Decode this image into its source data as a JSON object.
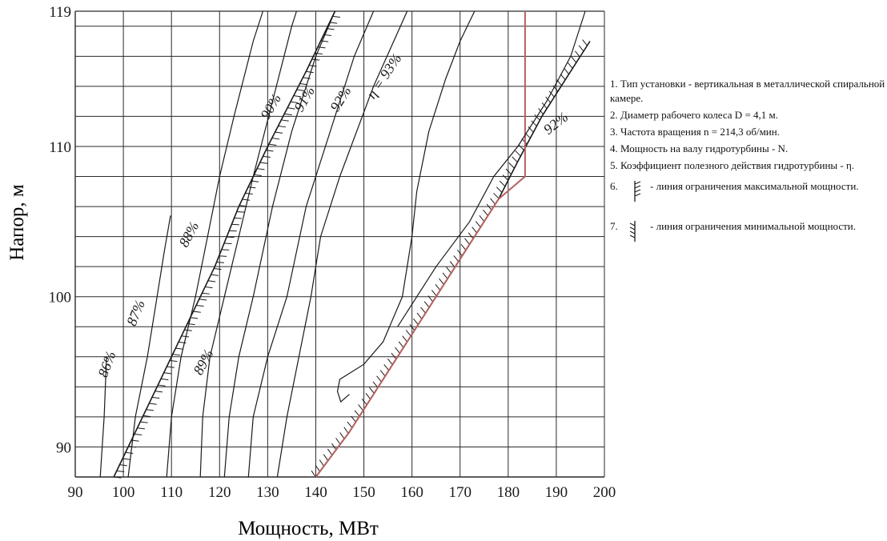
{
  "chart_data": {
    "type": "line",
    "title": "",
    "xlabel": "Мощность, МВт",
    "ylabel": "Напор, м",
    "xlim": [
      90,
      200
    ],
    "ylim": [
      88,
      119
    ],
    "x_ticks": [
      "90",
      "100",
      "110",
      "120",
      "130",
      "140",
      "150",
      "160",
      "170",
      "180",
      "190",
      "200"
    ],
    "y_ticks": [
      "90",
      "100",
      "110",
      "119"
    ],
    "grid": true,
    "efficiency_contours": [
      {
        "label": "86%",
        "points": [
          [
            95.2,
            88
          ],
          [
            96.0,
            92
          ],
          [
            96.5,
            96
          ]
        ]
      },
      {
        "label": "87%",
        "points": [
          [
            101,
            88
          ],
          [
            102.5,
            92
          ],
          [
            105,
            96
          ],
          [
            107,
            100
          ],
          [
            108.5,
            103
          ],
          [
            109.8,
            105.4
          ]
        ]
      },
      {
        "label": "88%",
        "points": [
          [
            109,
            88
          ],
          [
            110,
            92
          ],
          [
            112,
            96
          ],
          [
            115,
            100
          ],
          [
            117.5,
            104
          ],
          [
            120,
            108
          ],
          [
            123,
            112
          ],
          [
            127,
            117
          ],
          [
            129,
            119
          ]
        ]
      },
      {
        "label": "89%",
        "points": [
          [
            116,
            88
          ],
          [
            116.5,
            92
          ],
          [
            118,
            96
          ],
          [
            121,
            100
          ],
          [
            124,
            104
          ],
          [
            127,
            108
          ],
          [
            131,
            113
          ],
          [
            135,
            118
          ],
          [
            136,
            119
          ]
        ]
      },
      {
        "label": "90%",
        "points": [
          [
            121,
            88
          ],
          [
            122,
            92
          ],
          [
            124,
            96
          ],
          [
            127,
            100
          ],
          [
            131,
            106
          ],
          [
            135,
            111
          ],
          [
            140,
            116
          ],
          [
            144,
            119
          ]
        ]
      },
      {
        "label": "91%",
        "points": [
          [
            126,
            88
          ],
          [
            127,
            92
          ],
          [
            130,
            96
          ],
          [
            134,
            100
          ],
          [
            138,
            106
          ],
          [
            143,
            111
          ],
          [
            148,
            116
          ],
          [
            152,
            119
          ]
        ]
      },
      {
        "label": "92%",
        "points": [
          [
            132,
            88
          ],
          [
            134,
            92
          ],
          [
            136.5,
            96
          ],
          [
            139,
            100
          ],
          [
            141,
            104
          ],
          [
            145,
            108
          ],
          [
            152,
            114
          ],
          [
            159,
            119
          ]
        ]
      },
      {
        "label": "η = 93%",
        "points": [
          [
            147,
            93.5
          ],
          [
            145.2,
            93
          ],
          [
            144.5,
            93.7
          ],
          [
            145,
            94.5
          ],
          [
            150,
            95.5
          ],
          [
            154,
            97
          ],
          [
            158,
            100
          ],
          [
            160,
            104
          ],
          [
            161,
            107
          ],
          [
            163.5,
            111
          ],
          [
            167,
            114.5
          ],
          [
            170,
            117
          ],
          [
            173,
            119
          ]
        ]
      },
      {
        "label": "92%",
        "points": [
          [
            157,
            98
          ],
          [
            165,
            102
          ],
          [
            172,
            105
          ],
          [
            177,
            108
          ],
          [
            182,
            110
          ],
          [
            188,
            113
          ],
          [
            193,
            116
          ],
          [
            196,
            119
          ]
        ]
      }
    ],
    "max_power_limit": {
      "points": [
        [
          98,
          88
        ],
        [
          101,
          90
        ],
        [
          107,
          94
        ],
        [
          113,
          98
        ],
        [
          119,
          102
        ],
        [
          124,
          106
        ],
        [
          130,
          110
        ],
        [
          138,
          115
        ],
        [
          144,
          119
        ]
      ]
    },
    "min_power_limit": {
      "points": [
        [
          140,
          88
        ],
        [
          147,
          91
        ],
        [
          155,
          95
        ],
        [
          163,
          99
        ],
        [
          171,
          103
        ],
        [
          178,
          106.5
        ],
        [
          182,
          109
        ],
        [
          187,
          112
        ],
        [
          193,
          115
        ],
        [
          197,
          117
        ]
      ]
    },
    "operating_zone_boundary": {
      "points": [
        [
          140,
          88
        ],
        [
          147,
          91
        ],
        [
          155,
          95
        ],
        [
          163,
          99
        ],
        [
          171,
          103
        ],
        [
          178,
          106.5
        ],
        [
          183.5,
          108
        ],
        [
          183.5,
          111
        ],
        [
          183.5,
          119
        ]
      ]
    }
  },
  "notes": [
    "1. Тип установки - вертикальная в металлической спиральной камере.",
    "2. Диаметр рабочего колеса D = 4,1 м.",
    "3. Частота вращения n = 214,3 об/мин.",
    "4. Мощность на валу гидротурбины - N.",
    "5. Коэффициент полезного действия гидротурбины - η."
  ],
  "legend": [
    {
      "number": "6.",
      "text": "- линия ограничения максимальной мощности."
    },
    {
      "number": "7.",
      "text": "- линия ограничения минимальной мощности."
    }
  ],
  "colors": {
    "ink": "#1a1a1a",
    "grid": "#2a2a2a",
    "zone": "#b5605f"
  },
  "icons": {
    "max_limit": "hatched-line-max-icon",
    "min_limit": "hatched-line-min-icon"
  }
}
